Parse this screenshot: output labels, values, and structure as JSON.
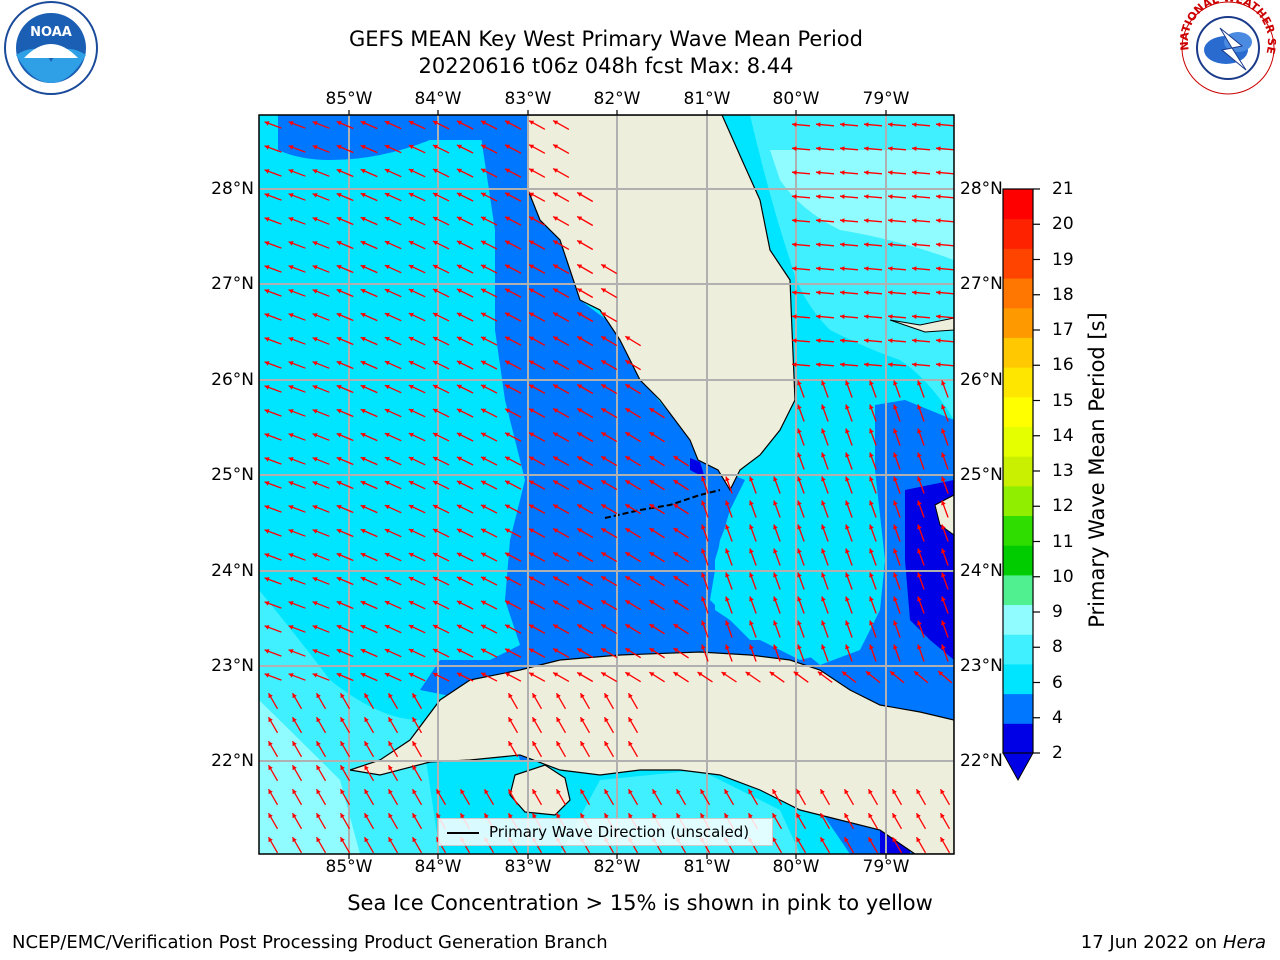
{
  "title": {
    "line1": "GEFS MEAN Key West Primary Wave Mean Period",
    "line2": "20220616 t06z 048h fcst   Max: 8.44"
  },
  "axes": {
    "longitudes": [
      "85°W",
      "84°W",
      "83°W",
      "82°W",
      "81°W",
      "80°W",
      "79°W"
    ],
    "latitudes": [
      "28°N",
      "27°N",
      "26°N",
      "25°N",
      "24°N",
      "23°N",
      "22°N"
    ],
    "lon_values": [
      -85,
      -84,
      -83,
      -82,
      -81,
      -80,
      -79
    ],
    "lat_values": [
      28,
      27,
      26,
      25,
      24,
      23,
      22
    ],
    "lon_range": [
      -86.0,
      -78.3
    ],
    "lat_range": [
      21.1,
      28.75
    ]
  },
  "colorbar": {
    "label": "Primary Wave Mean Period [s]",
    "ticks": [
      "21",
      "20",
      "19",
      "18",
      "17",
      "16",
      "15",
      "14",
      "13",
      "12",
      "11",
      "10",
      "9",
      "8",
      "6",
      "4",
      "2"
    ],
    "colors": [
      "#0000e6",
      "#0077ff",
      "#00e5ff",
      "#40f0ff",
      "#90fcff",
      "#50f090",
      "#00cc00",
      "#30dd00",
      "#90ee00",
      "#c8f000",
      "#e6ff00",
      "#ffff00",
      "#ffe600",
      "#ffc800",
      "#ff9900",
      "#ff7700",
      "#ff4400",
      "#ff2200",
      "#ff0000"
    ]
  },
  "legend": {
    "label": "Primary Wave Direction (unscaled)"
  },
  "notes": {
    "sea_ice": "Sea Ice Concentration > 15% is shown in pink to yellow"
  },
  "footer": {
    "left": "NCEP/EMC/Verification Post Processing Product Generation Branch",
    "date": "17 Jun 2022 on",
    "system": "Hera"
  },
  "logos": {
    "noaa": "NOAA",
    "nws": "NATIONAL WEATHER SERVICE"
  },
  "map_colors": {
    "land": "#eeeedd",
    "arrow": "#ff0000",
    "grid": "#b0b0b0"
  }
}
